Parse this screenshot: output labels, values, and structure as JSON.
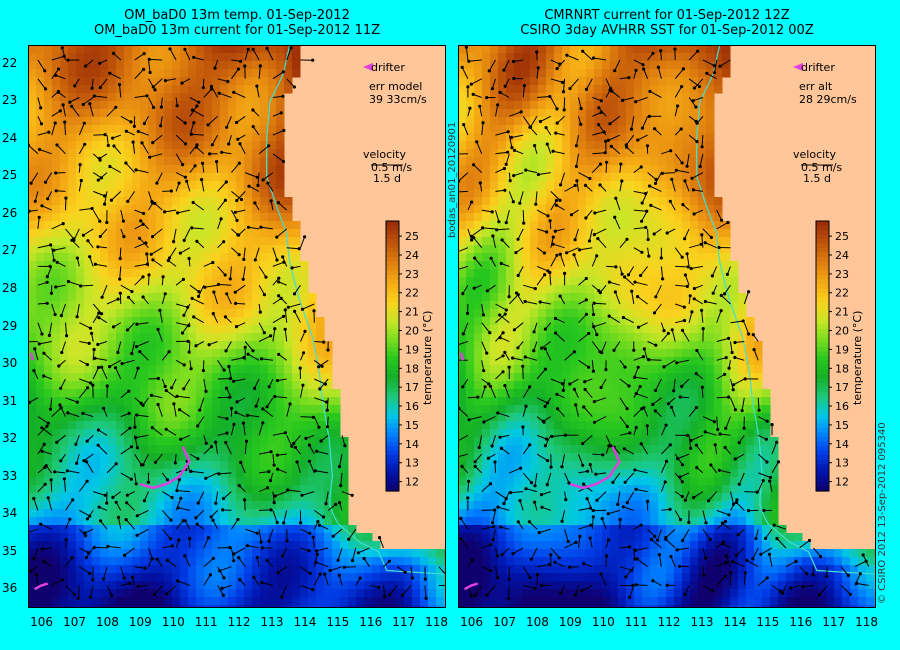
{
  "colors": {
    "background": "#00ffff",
    "land": "#ffc69a",
    "arrows": "#000000",
    "drifter": "#e040e0",
    "coast": "#40e0d0"
  },
  "chart_data": [
    {
      "type": "heatmap",
      "title": "OM_baD0 13m temp. 01-Sep-2012",
      "subtitle": "OM_baD0 13m current for 01-Sep-2012 11Z",
      "xlabel": "",
      "ylabel": "",
      "x_ticks": [
        106,
        107,
        108,
        109,
        110,
        111,
        112,
        113,
        114,
        115,
        116,
        117,
        118
      ],
      "y_ticks": [
        22,
        23,
        24,
        25,
        26,
        27,
        28,
        29,
        30,
        31,
        32,
        33,
        34,
        35,
        36
      ],
      "xlim": [
        105.6,
        118.3
      ],
      "ylim": [
        36.5,
        21.5
      ],
      "legend_items": [
        "drifter"
      ],
      "error_label": "err model",
      "error_value": "39 33cm/s",
      "velocity_label": "velocity",
      "velocity_scale": "0.5 m/s",
      "velocity_time": "1.5 d",
      "colorbar": {
        "label": "temperature (°C)",
        "ticks": [
          12,
          13,
          14,
          15,
          16,
          17,
          18,
          19,
          20,
          21,
          22,
          23,
          24,
          25
        ],
        "range": [
          11.5,
          25.8
        ]
      }
    },
    {
      "type": "heatmap",
      "title": "CMRNRT current for 01-Sep-2012 12Z",
      "subtitle": "CSIRO 3day AVHRR SST for 01-Sep-2012 00Z",
      "xlabel": "",
      "ylabel": "",
      "x_ticks": [
        106,
        107,
        108,
        109,
        110,
        111,
        112,
        113,
        114,
        115,
        116,
        117,
        118
      ],
      "y_ticks": [
        22,
        23,
        24,
        25,
        26,
        27,
        28,
        29,
        30,
        31,
        32,
        33,
        34,
        35,
        36
      ],
      "xlim": [
        105.6,
        118.3
      ],
      "ylim": [
        36.5,
        21.5
      ],
      "legend_items": [
        "drifter"
      ],
      "error_label": "err alt",
      "error_value": "28 29cm/s",
      "velocity_label": "velocity",
      "velocity_scale": "0.5 m/s",
      "velocity_time": "1.5 d",
      "colorbar": {
        "label": "temperature (°C)",
        "ticks": [
          12,
          13,
          14,
          15,
          16,
          17,
          18,
          19,
          20,
          21,
          22,
          23,
          24,
          25
        ],
        "range": [
          11.5,
          25.8
        ]
      }
    }
  ],
  "side_labels": {
    "run_id": "bodas_an01_20120901",
    "credit": "© CSIRO 2012  13-Sep-2012 095340"
  }
}
